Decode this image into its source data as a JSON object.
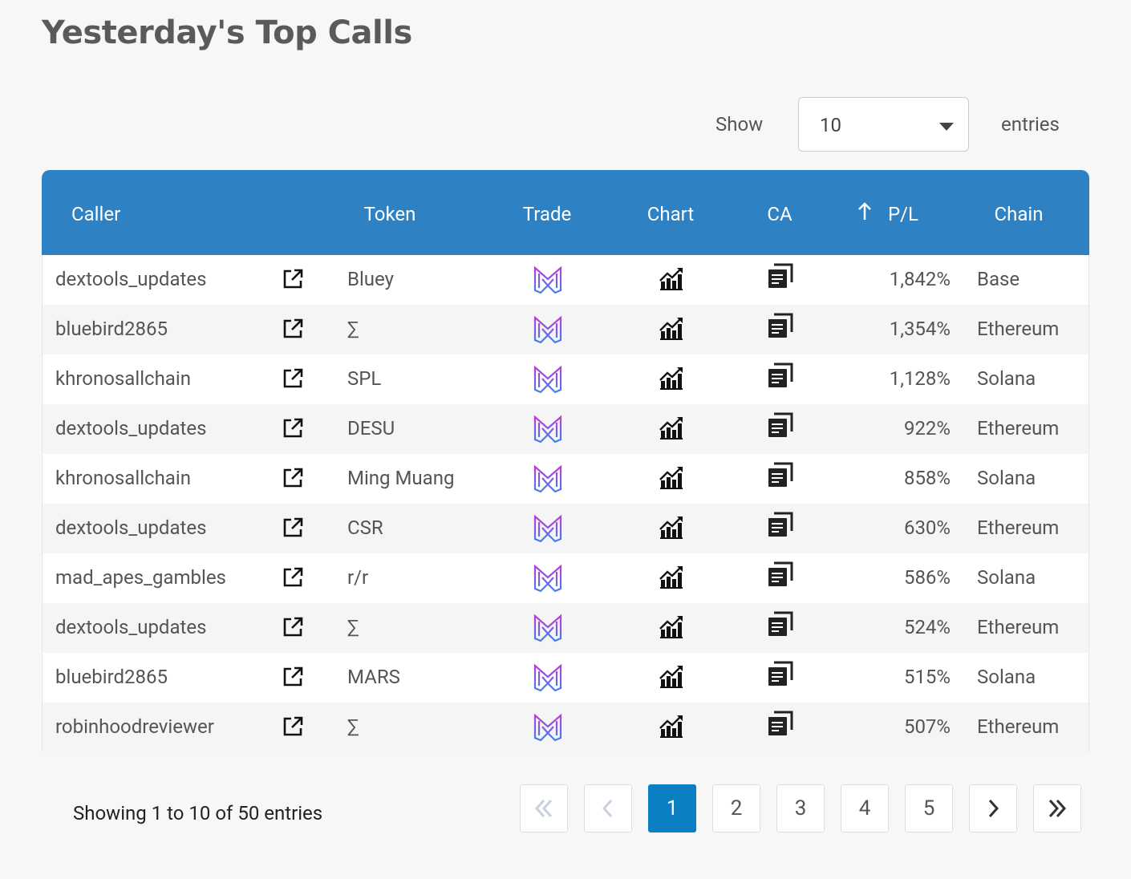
{
  "header": {
    "title": "Yesterday's Top Calls"
  },
  "length_control": {
    "label": "Show",
    "value": "10",
    "suffix": "entries"
  },
  "table": {
    "columns": [
      "Caller",
      "Token",
      "Trade",
      "Chart",
      "CA",
      "P/L",
      "Chain"
    ],
    "rows": [
      [
        "dextools_updates",
        "Bluey",
        "1,842%",
        "Base"
      ],
      [
        "bluebird2865",
        "∑",
        "1,354%",
        "Ethereum"
      ],
      [
        "khronosallchain",
        "SPL",
        "1,128%",
        "Solana"
      ],
      [
        "dextools_updates",
        "DESU",
        "922%",
        "Ethereum"
      ],
      [
        "khronosallchain",
        "Ming Muang",
        "858%",
        "Solana"
      ],
      [
        "dextools_updates",
        "CSR",
        "630%",
        "Ethereum"
      ],
      [
        "mad_apes_gambles",
        "r/r",
        "586%",
        "Solana"
      ],
      [
        "dextools_updates",
        "∑",
        "524%",
        "Ethereum"
      ],
      [
        "bluebird2865",
        "MARS",
        "515%",
        "Solana"
      ],
      [
        "robinhoodreviewer",
        "∑",
        "507%",
        "Ethereum"
      ]
    ]
  },
  "footer": {
    "info": "Showing 1 to 10 of 50 entries",
    "pages": [
      "1",
      "2",
      "3",
      "4",
      "5"
    ],
    "current_page": "1"
  }
}
